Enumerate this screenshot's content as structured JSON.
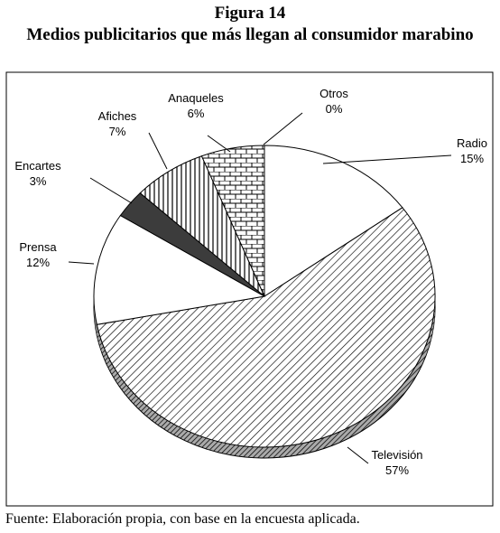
{
  "chart_data": {
    "type": "pie",
    "figure_label": "Figura 14",
    "title": "Medios publicitarios que más llegan al consumidor marabino",
    "source": "Fuente: Elaboración propia, con base en la encuesta aplicada.",
    "categories": [
      "Radio",
      "Televisión",
      "Prensa",
      "Encartes",
      "Afiches",
      "Anaqueles",
      "Otros"
    ],
    "values": [
      15,
      57,
      12,
      3,
      7,
      6,
      0
    ],
    "value_labels": [
      "15%",
      "57%",
      "12%",
      "3%",
      "7%",
      "6%",
      "0%"
    ],
    "fills": [
      "#ffffff",
      "diagonal",
      "#ffffff",
      "#3c3c3c",
      "vertical",
      "brick",
      "#ffffff"
    ]
  }
}
